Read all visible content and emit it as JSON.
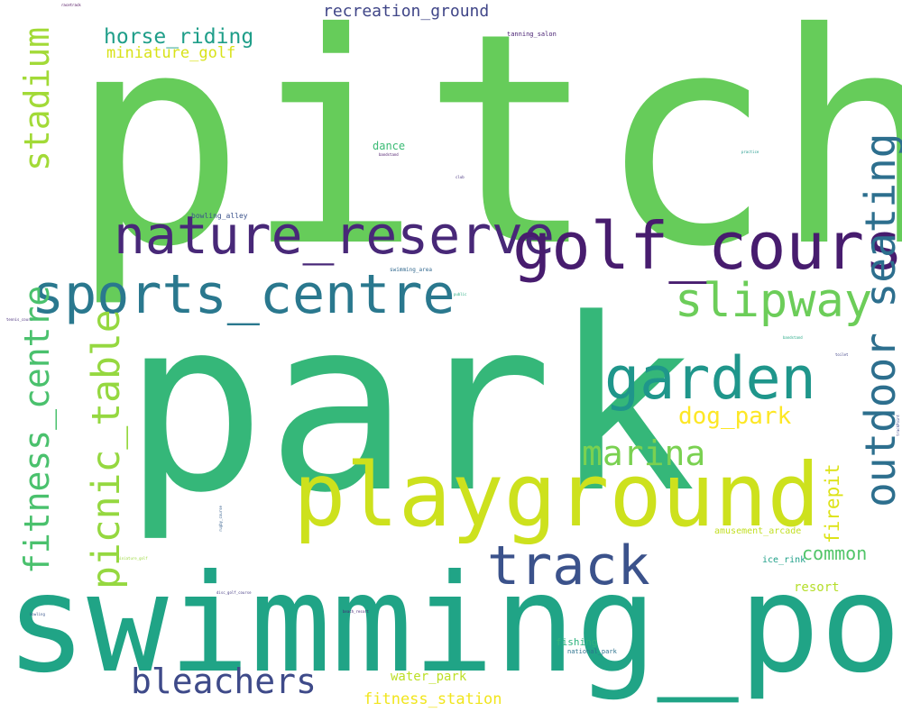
{
  "words": [
    {
      "text": "pitch",
      "color": "#66cc5a"
    },
    {
      "text": "park",
      "color": "#35b779"
    },
    {
      "text": "swimming_pool",
      "color": "#20a486"
    },
    {
      "text": "playground",
      "color": "#cde11d"
    },
    {
      "text": "nature_reserve",
      "color": "#482878"
    },
    {
      "text": "golf_course",
      "color": "#471c6e"
    },
    {
      "text": "sports_centre",
      "color": "#2a788e"
    },
    {
      "text": "slipway",
      "color": "#6ccd59"
    },
    {
      "text": "garden",
      "color": "#1f968b"
    },
    {
      "text": "track",
      "color": "#3b528b"
    },
    {
      "text": "outdoor_seating",
      "color": "#2d6f8e"
    },
    {
      "text": "fitness_centre",
      "color": "#4ac16d"
    },
    {
      "text": "picnic_table",
      "color": "#95d840"
    },
    {
      "text": "marina",
      "color": "#7ad151"
    },
    {
      "text": "dog_park",
      "color": "#fde725"
    },
    {
      "text": "bleachers",
      "color": "#3e4a89"
    },
    {
      "text": "stadium",
      "color": "#a2da37"
    },
    {
      "text": "horse_riding",
      "color": "#1f9e89"
    },
    {
      "text": "miniature_golf",
      "color": "#d8e219"
    },
    {
      "text": "recreation_ground",
      "color": "#404688"
    },
    {
      "text": "firepit",
      "color": "#dde318"
    },
    {
      "text": "common",
      "color": "#52c569"
    },
    {
      "text": "resort",
      "color": "#b5de2b"
    },
    {
      "text": "amusement_arcade",
      "color": "#c2df23"
    },
    {
      "text": "ice_rink",
      "color": "#1fa088"
    },
    {
      "text": "fishing",
      "color": "#2db27d"
    },
    {
      "text": "national_park",
      "color": "#2c728e"
    },
    {
      "text": "water_park",
      "color": "#bddf26"
    },
    {
      "text": "fitness_station",
      "color": "#f1e51d"
    },
    {
      "text": "dance",
      "color": "#3bbb75"
    },
    {
      "text": "bowling_alley",
      "color": "#3b528b"
    },
    {
      "text": "tanning_salon",
      "color": "#482173"
    },
    {
      "text": "swimming_area",
      "color": "#31688e"
    },
    {
      "text": "racetrack",
      "color": "#440154"
    },
    {
      "text": "bandstand",
      "color": "#481467"
    },
    {
      "text": "club",
      "color": "#46337f"
    },
    {
      "text": "practice",
      "color": "#1f988b"
    },
    {
      "text": "public",
      "color": "#25ac82"
    },
    {
      "text": "tennis_court",
      "color": "#472d7b"
    },
    {
      "text": "bandstand",
      "color": "#22a884"
    },
    {
      "text": "toilet",
      "color": "#414487"
    },
    {
      "text": "trackPoint",
      "color": "#3e4989"
    },
    {
      "text": "rugby_course",
      "color": "#355f8d"
    },
    {
      "text": "miniature_golf",
      "color": "#9bd93c"
    },
    {
      "text": "disc_golf_course",
      "color": "#443a83"
    },
    {
      "text": "bowling",
      "color": "#39568c"
    },
    {
      "text": "beach_resort",
      "color": "#482475"
    }
  ]
}
